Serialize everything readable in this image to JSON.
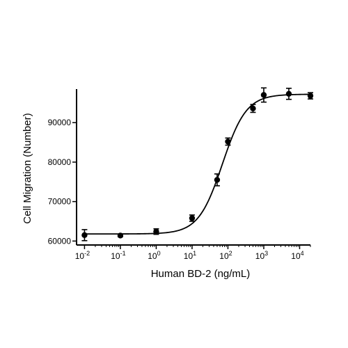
{
  "chart_data": {
    "type": "scatter",
    "title": "",
    "xlabel": "Human BD-2 (ng/mL)",
    "ylabel": "Cell Migration (Number)",
    "x_scale": "log",
    "x_range": [
      0.006,
      20000
    ],
    "y_range": [
      59000,
      98500
    ],
    "x_ticks": [
      {
        "value": 0.01,
        "base": "10",
        "exp": "-2"
      },
      {
        "value": 0.1,
        "base": "10",
        "exp": "-1"
      },
      {
        "value": 1,
        "base": "10",
        "exp": "0"
      },
      {
        "value": 10,
        "base": "10",
        "exp": "1"
      },
      {
        "value": 100,
        "base": "10",
        "exp": "2"
      },
      {
        "value": 1000,
        "base": "10",
        "exp": "3"
      },
      {
        "value": 10000,
        "base": "10",
        "exp": "4"
      }
    ],
    "y_ticks": [
      {
        "value": 60000,
        "label": "60000"
      },
      {
        "value": 70000,
        "label": "70000"
      },
      {
        "value": 80000,
        "label": "80000"
      },
      {
        "value": 90000,
        "label": "90000"
      }
    ],
    "series": [
      {
        "points": [
          {
            "x": 0.01,
            "y": 61500,
            "err": 1400
          },
          {
            "x": 0.1,
            "y": 61400,
            "err": 300
          },
          {
            "x": 1,
            "y": 62400,
            "err": 700
          },
          {
            "x": 10,
            "y": 65800,
            "err": 800
          },
          {
            "x": 50,
            "y": 75500,
            "err": 1500
          },
          {
            "x": 100,
            "y": 85200,
            "err": 900
          },
          {
            "x": 500,
            "y": 93600,
            "err": 1000
          },
          {
            "x": 1000,
            "y": 97000,
            "err": 1800
          },
          {
            "x": 5000,
            "y": 97300,
            "err": 1400
          },
          {
            "x": 20000,
            "y": 96800,
            "err": 800
          }
        ]
      }
    ],
    "fit": {
      "bottom": 61800,
      "top": 97200,
      "ec50": 70,
      "hill": 1.3
    },
    "grid": false,
    "legend": "none"
  }
}
